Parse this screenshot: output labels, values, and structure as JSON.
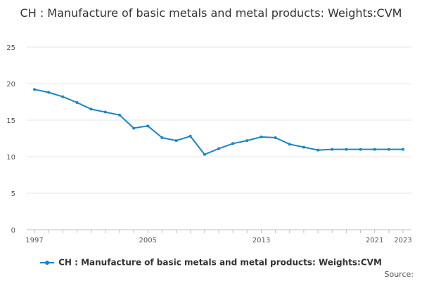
{
  "chart_data": {
    "type": "line",
    "title": "CH : Manufacture of basic metals and metal products: Weights:CVM",
    "x": [
      1997,
      1998,
      1999,
      2000,
      2001,
      2002,
      2003,
      2004,
      2005,
      2006,
      2007,
      2008,
      2009,
      2010,
      2011,
      2012,
      2013,
      2014,
      2015,
      2016,
      2017,
      2018,
      2019,
      2020,
      2021,
      2022,
      2023
    ],
    "x_tick_labels": [
      "1997",
      "2005",
      "2013",
      "2021",
      "2023"
    ],
    "y_tick_labels": [
      "0",
      "5",
      "10",
      "15",
      "20",
      "25"
    ],
    "ylim": [
      0,
      25
    ],
    "grid": true,
    "legend_position": "bottom",
    "series": [
      {
        "name": "CH : Manufacture of basic metals and metal products: Weights:CVM",
        "color": "#1a85c6",
        "values": [
          19.2,
          18.8,
          18.2,
          17.4,
          16.5,
          16.1,
          15.7,
          13.9,
          14.2,
          12.6,
          12.2,
          12.8,
          10.3,
          11.1,
          11.8,
          12.2,
          12.7,
          12.6,
          11.7,
          11.3,
          10.9,
          11.0,
          11.0,
          11.0,
          11.0,
          11.0,
          11.0
        ]
      }
    ]
  },
  "source_label": "Source:"
}
